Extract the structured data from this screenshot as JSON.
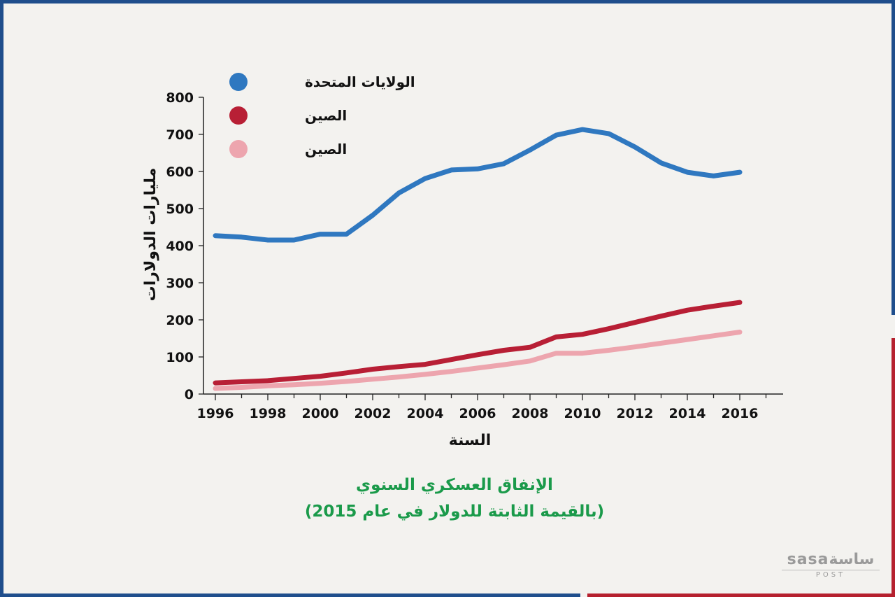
{
  "chart_data": {
    "type": "line",
    "title": "الإنفاق العسكري السنوي",
    "subtitle": "(بالقيمة الثابتة للدولار في عام 2015)",
    "xlabel": "السنة",
    "ylabel": "مليارات الدولارات",
    "xlim": [
      1996,
      2016
    ],
    "ylim": [
      0,
      800
    ],
    "x_ticks": [
      1996,
      1998,
      2000,
      2002,
      2004,
      2006,
      2008,
      2010,
      2012,
      2014,
      2016
    ],
    "y_ticks": [
      0,
      100,
      200,
      300,
      400,
      500,
      600,
      700,
      800
    ],
    "y_ticks_labeled": [
      0,
      100,
      200,
      300,
      400,
      500,
      600,
      700,
      800
    ],
    "grid": false,
    "legend_position": "top-left",
    "series": [
      {
        "name": "الولايات المتحدة",
        "color": "#2f78c0",
        "x": [
          1996,
          1997,
          1998,
          1999,
          2000,
          2001,
          2002,
          2003,
          2004,
          2005,
          2006,
          2007,
          2008,
          2009,
          2010,
          2011,
          2012,
          2013,
          2014,
          2015,
          2016
        ],
        "values": [
          427,
          423,
          415,
          415,
          431,
          431,
          482,
          542,
          581,
          604,
          607,
          621,
          658,
          698,
          713,
          702,
          666,
          623,
          598,
          588,
          598
        ]
      },
      {
        "name": "الصين",
        "color": "#b81f35",
        "x": [
          1996,
          1997,
          1998,
          1999,
          2000,
          2001,
          2002,
          2003,
          2004,
          2005,
          2006,
          2007,
          2008,
          2009,
          2010,
          2011,
          2012,
          2013,
          2014,
          2015,
          2016
        ],
        "values": [
          30,
          33,
          36,
          42,
          48,
          57,
          67,
          74,
          80,
          93,
          106,
          118,
          126,
          154,
          161,
          176,
          193,
          210,
          226,
          237,
          247
        ]
      },
      {
        "name": "الصين",
        "color": "#eda5ae",
        "x": [
          1996,
          1997,
          1998,
          1999,
          2000,
          2001,
          2002,
          2003,
          2004,
          2005,
          2006,
          2007,
          2008,
          2009,
          2010,
          2011,
          2012,
          2013,
          2014,
          2015,
          2016
        ],
        "values": [
          15,
          18,
          22,
          25,
          29,
          34,
          40,
          46,
          53,
          61,
          70,
          79,
          89,
          110,
          110,
          118,
          127,
          137,
          147,
          157,
          167
        ]
      }
    ]
  },
  "logo": {
    "main": "sasaساسة",
    "sub": "POST"
  }
}
